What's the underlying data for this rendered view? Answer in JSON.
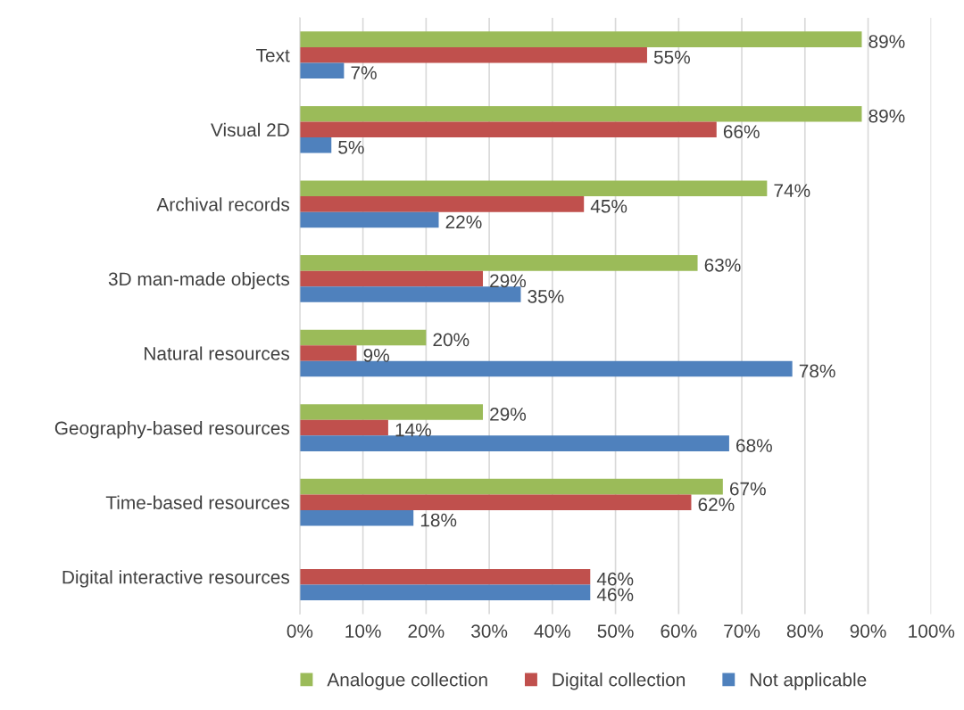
{
  "chart_data": {
    "type": "bar",
    "orientation": "horizontal",
    "categories": [
      "Text",
      "Visual 2D",
      "Archival records",
      "3D man-made objects",
      "Natural resources",
      "Geography-based resources",
      "Time-based resources",
      "Digital interactive resources"
    ],
    "series": [
      {
        "name": "Analogue collection",
        "color": "#9bbb59",
        "values": [
          89,
          89,
          74,
          63,
          20,
          29,
          67,
          null
        ],
        "value_labels": [
          "89%",
          "89%",
          "74%",
          "63%",
          "20%",
          "29%",
          "67%",
          null
        ]
      },
      {
        "name": "Digital collection",
        "color": "#c0504d",
        "values": [
          55,
          66,
          45,
          29,
          9,
          14,
          62,
          46
        ],
        "value_labels": [
          "55%",
          "66%",
          "45%",
          "29%",
          "9%",
          "14%",
          "62%",
          "46%"
        ]
      },
      {
        "name": "Not applicable",
        "color": "#4f81bd",
        "values": [
          7,
          5,
          22,
          35,
          78,
          68,
          18,
          46
        ],
        "value_labels": [
          "7%",
          "5%",
          "22%",
          "35%",
          "78%",
          "68%",
          "18%",
          "46%"
        ]
      }
    ],
    "xlim": [
      0,
      100
    ],
    "xticks": [
      {
        "value": 0,
        "label": "0%"
      },
      {
        "value": 10,
        "label": "10%"
      },
      {
        "value": 20,
        "label": "20%"
      },
      {
        "value": 30,
        "label": "30%"
      },
      {
        "value": 40,
        "label": "40%"
      },
      {
        "value": 50,
        "label": "50%"
      },
      {
        "value": 60,
        "label": "60%"
      },
      {
        "value": 70,
        "label": "70%"
      },
      {
        "value": 80,
        "label": "80%"
      },
      {
        "value": 90,
        "label": "90%"
      },
      {
        "value": 100,
        "label": "100%"
      }
    ],
    "grid": "x",
    "legend": "bottom"
  }
}
